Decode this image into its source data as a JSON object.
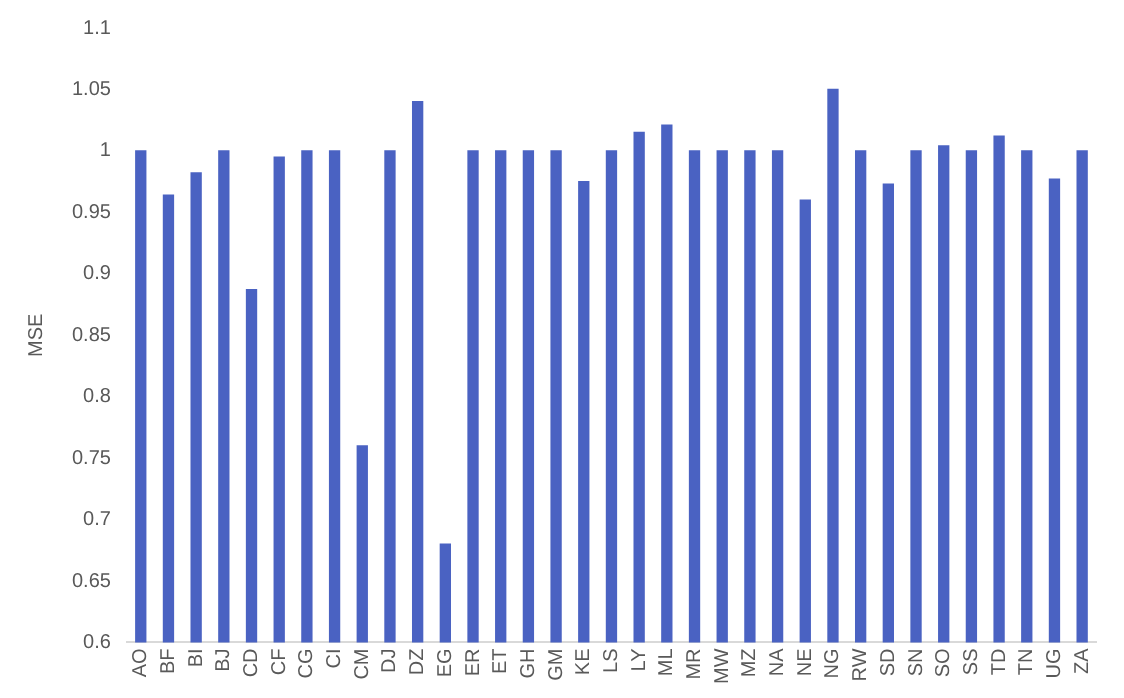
{
  "chart_data": {
    "type": "bar",
    "ylabel": "MSE",
    "categories": [
      "AO",
      "BF",
      "BI",
      "BJ",
      "CD",
      "CF",
      "CG",
      "CI",
      "CM",
      "DJ",
      "DZ",
      "EG",
      "ER",
      "ET",
      "GH",
      "GM",
      "KE",
      "LS",
      "LY",
      "ML",
      "MR",
      "MW",
      "MZ",
      "NA",
      "NE",
      "NG",
      "RW",
      "SD",
      "SN",
      "SO",
      "SS",
      "TD",
      "TN",
      "UG",
      "ZA"
    ],
    "series": [
      {
        "color": "#4a62c2",
        "values": [
          1,
          0.964,
          0.982,
          1,
          0.887,
          0.995,
          1,
          1,
          0.76,
          1,
          1.04,
          0.68,
          1,
          1,
          1,
          1,
          0.975,
          1,
          1.015,
          1.021,
          1,
          1,
          1,
          1,
          0.96,
          1.05,
          1,
          0.973,
          1,
          1.004,
          1,
          1.012,
          1,
          0.977,
          1
        ]
      }
    ],
    "ylim": [
      0.6,
      1.1
    ],
    "yticks": [
      {
        "value": 0.6,
        "label": "0.6"
      },
      0.65,
      {
        "value": 0.7,
        "label": "0.7"
      },
      0.75,
      {
        "value": 0.8,
        "label": "0.8"
      },
      0.85,
      {
        "value": 0.9,
        "label": "0.9"
      },
      0.95,
      {
        "value": 1,
        "label": "1"
      },
      1.05,
      {
        "value": 1.1,
        "label": "1.1"
      }
    ],
    "grid": false,
    "legend": false
  }
}
